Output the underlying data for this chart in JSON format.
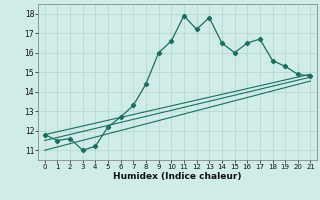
{
  "xlabel": "Humidex (Indice chaleur)",
  "ylabel": "",
  "bg_color": "#d0ece8",
  "grid_color": "#b8d8d2",
  "line_color": "#1a6e5e",
  "xlim": [
    -0.5,
    21.5
  ],
  "ylim": [
    10.5,
    18.5
  ],
  "xticks": [
    0,
    1,
    2,
    3,
    4,
    5,
    6,
    7,
    8,
    9,
    10,
    11,
    12,
    13,
    14,
    15,
    16,
    17,
    18,
    19,
    20,
    21
  ],
  "yticks": [
    11,
    12,
    13,
    14,
    15,
    16,
    17,
    18
  ],
  "main_x": [
    0,
    1,
    2,
    3,
    4,
    5,
    6,
    7,
    8,
    9,
    10,
    11,
    12,
    13,
    14,
    15,
    16,
    17,
    18,
    19,
    20,
    21
  ],
  "main_y": [
    11.8,
    11.5,
    11.6,
    11.0,
    11.2,
    12.2,
    12.7,
    13.3,
    14.4,
    16.0,
    16.6,
    17.9,
    17.2,
    17.8,
    16.5,
    16.0,
    16.5,
    16.7,
    15.6,
    15.3,
    14.9,
    14.8
  ],
  "line1_x": [
    0,
    21
  ],
  "line1_y": [
    11.8,
    14.9
  ],
  "line2_x": [
    0,
    21
  ],
  "line2_y": [
    11.5,
    14.75
  ],
  "line3_x": [
    0,
    21
  ],
  "line3_y": [
    11.0,
    14.55
  ]
}
